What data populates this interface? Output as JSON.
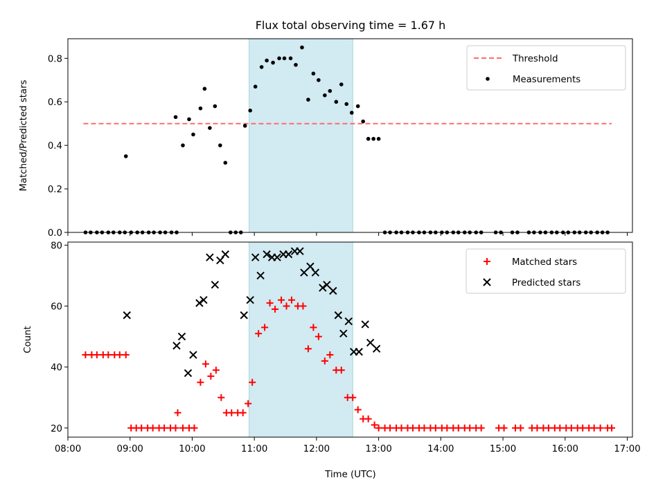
{
  "title": "Flux total observing time = 1.67 h",
  "x_label": "Time (UTC)",
  "chart_data": [
    {
      "type": "scatter",
      "ylabel": "Matched/Predicted stars",
      "xlim": [
        "08:00",
        "17:05"
      ],
      "ylim": [
        0,
        0.89
      ],
      "y_ticks": [
        "0.0",
        "0.2",
        "0.4",
        "0.6",
        "0.8"
      ],
      "y_tick_values": [
        0,
        0.2,
        0.4,
        0.6,
        0.8
      ],
      "shaded_interval": [
        "10:55",
        "12:35"
      ],
      "shade_color": "#add8e6",
      "threshold": {
        "name": "Threshold",
        "value": 0.5,
        "x_range": [
          "08:15",
          "16:45"
        ],
        "color": "#ff6b6b"
      },
      "legend": {
        "placement": "top-right",
        "entries": [
          "Threshold",
          "Measurements"
        ]
      },
      "series": [
        {
          "name": "Measurements",
          "color": "#000000",
          "marker": "dot",
          "points": [
            [
              "08:17",
              0
            ],
            [
              "08:22",
              0
            ],
            [
              "08:28",
              0
            ],
            [
              "08:33",
              0
            ],
            [
              "08:39",
              0
            ],
            [
              "08:44",
              0
            ],
            [
              "08:50",
              0
            ],
            [
              "08:55",
              0
            ],
            [
              "08:56",
              0.35
            ],
            [
              "09:01",
              0
            ],
            [
              "09:07",
              0
            ],
            [
              "09:12",
              0
            ],
            [
              "09:18",
              0
            ],
            [
              "09:23",
              0
            ],
            [
              "09:29",
              0
            ],
            [
              "09:34",
              0
            ],
            [
              "09:40",
              0
            ],
            [
              "09:45",
              0
            ],
            [
              "09:44",
              0.53
            ],
            [
              "09:51",
              0.4
            ],
            [
              "09:57",
              0.52
            ],
            [
              "10:01",
              0.45
            ],
            [
              "10:08",
              0.57
            ],
            [
              "10:12",
              0.66
            ],
            [
              "10:17",
              0.48
            ],
            [
              "10:22",
              0.58
            ],
            [
              "10:27",
              0.4
            ],
            [
              "10:32",
              0.32
            ],
            [
              "10:37",
              0
            ],
            [
              "10:42",
              0
            ],
            [
              "10:47",
              0
            ],
            [
              "10:51",
              0.49
            ],
            [
              "10:56",
              0.56
            ],
            [
              "11:01",
              0.67
            ],
            [
              "11:07",
              0.76
            ],
            [
              "11:12",
              0.79
            ],
            [
              "11:18",
              0.78
            ],
            [
              "11:24",
              0.8
            ],
            [
              "11:29",
              0.8
            ],
            [
              "11:35",
              0.8
            ],
            [
              "11:40",
              0.77
            ],
            [
              "11:46",
              0.85
            ],
            [
              "11:52",
              0.61
            ],
            [
              "11:57",
              0.73
            ],
            [
              "12:02",
              0.7
            ],
            [
              "12:08",
              0.63
            ],
            [
              "12:13",
              0.65
            ],
            [
              "12:19",
              0.6
            ],
            [
              "12:24",
              0.68
            ],
            [
              "12:29",
              0.59
            ],
            [
              "12:34",
              0.55
            ],
            [
              "12:40",
              0.58
            ],
            [
              "12:45",
              0.51
            ],
            [
              "12:50",
              0.43
            ],
            [
              "12:55",
              0.43
            ],
            [
              "13:00",
              0.43
            ],
            [
              "13:06",
              0
            ],
            [
              "13:11",
              0
            ],
            [
              "13:17",
              0
            ],
            [
              "13:22",
              0
            ],
            [
              "13:28",
              0
            ],
            [
              "13:33",
              0
            ],
            [
              "13:39",
              0
            ],
            [
              "13:44",
              0
            ],
            [
              "13:50",
              0
            ],
            [
              "13:55",
              0
            ],
            [
              "14:01",
              0
            ],
            [
              "14:06",
              0
            ],
            [
              "14:12",
              0
            ],
            [
              "14:17",
              0
            ],
            [
              "14:23",
              0
            ],
            [
              "14:28",
              0
            ],
            [
              "14:34",
              0
            ],
            [
              "14:39",
              0
            ],
            [
              "14:53",
              0
            ],
            [
              "14:58",
              0
            ],
            [
              "15:09",
              0
            ],
            [
              "15:14",
              0
            ],
            [
              "15:25",
              0
            ],
            [
              "15:30",
              0
            ],
            [
              "15:36",
              0
            ],
            [
              "15:41",
              0
            ],
            [
              "15:47",
              0
            ],
            [
              "15:52",
              0
            ],
            [
              "15:58",
              0
            ],
            [
              "16:03",
              0
            ],
            [
              "16:09",
              0
            ],
            [
              "16:14",
              0
            ],
            [
              "16:20",
              0
            ],
            [
              "16:25",
              0
            ],
            [
              "16:31",
              0
            ],
            [
              "16:36",
              0
            ],
            [
              "16:41",
              0
            ]
          ]
        }
      ]
    },
    {
      "type": "scatter",
      "ylabel": "Count",
      "xlim": [
        "08:00",
        "17:05"
      ],
      "ylim": [
        17,
        81
      ],
      "y_ticks": [
        "20",
        "40",
        "60",
        "80"
      ],
      "y_tick_values": [
        20,
        40,
        60,
        80
      ],
      "x_ticks": [
        "08:00",
        "09:00",
        "10:00",
        "11:00",
        "12:00",
        "13:00",
        "14:00",
        "15:00",
        "16:00",
        "17:00"
      ],
      "shaded_interval": [
        "10:55",
        "12:35"
      ],
      "shade_color": "#add8e6",
      "legend": {
        "placement": "top-right",
        "entries": [
          "Matched stars",
          "Predicted stars"
        ]
      },
      "series": [
        {
          "name": "Matched stars",
          "color": "#ff0000",
          "marker": "plus",
          "points": [
            [
              "08:17",
              44
            ],
            [
              "08:23",
              44
            ],
            [
              "08:28",
              44
            ],
            [
              "08:34",
              44
            ],
            [
              "08:39",
              44
            ],
            [
              "08:45",
              44
            ],
            [
              "08:50",
              44
            ],
            [
              "08:56",
              44
            ],
            [
              "09:01",
              20
            ],
            [
              "09:06",
              20
            ],
            [
              "09:11",
              20
            ],
            [
              "09:17",
              20
            ],
            [
              "09:22",
              20
            ],
            [
              "09:28",
              20
            ],
            [
              "09:33",
              20
            ],
            [
              "09:39",
              20
            ],
            [
              "09:44",
              20
            ],
            [
              "09:46",
              25
            ],
            [
              "09:51",
              20
            ],
            [
              "09:57",
              20
            ],
            [
              "10:02",
              20
            ],
            [
              "10:08",
              35
            ],
            [
              "10:13",
              41
            ],
            [
              "10:18",
              37
            ],
            [
              "10:23",
              39
            ],
            [
              "10:28",
              30
            ],
            [
              "10:33",
              25
            ],
            [
              "10:38",
              25
            ],
            [
              "10:44",
              25
            ],
            [
              "10:49",
              25
            ],
            [
              "10:54",
              28
            ],
            [
              "10:58",
              35
            ],
            [
              "11:04",
              51
            ],
            [
              "11:10",
              53
            ],
            [
              "11:15",
              61
            ],
            [
              "11:20",
              59
            ],
            [
              "11:26",
              62
            ],
            [
              "11:31",
              60
            ],
            [
              "11:36",
              62
            ],
            [
              "11:42",
              60
            ],
            [
              "11:47",
              60
            ],
            [
              "11:52",
              46
            ],
            [
              "11:57",
              53
            ],
            [
              "12:02",
              50
            ],
            [
              "12:08",
              42
            ],
            [
              "12:13",
              44
            ],
            [
              "12:19",
              39
            ],
            [
              "12:24",
              39
            ],
            [
              "12:30",
              30
            ],
            [
              "12:35",
              30
            ],
            [
              "12:40",
              26
            ],
            [
              "12:45",
              23
            ],
            [
              "12:50",
              23
            ],
            [
              "12:56",
              21
            ],
            [
              "13:00",
              20
            ],
            [
              "13:06",
              20
            ],
            [
              "13:11",
              20
            ],
            [
              "13:17",
              20
            ],
            [
              "13:22",
              20
            ],
            [
              "13:28",
              20
            ],
            [
              "13:33",
              20
            ],
            [
              "13:39",
              20
            ],
            [
              "13:44",
              20
            ],
            [
              "13:50",
              20
            ],
            [
              "13:55",
              20
            ],
            [
              "14:01",
              20
            ],
            [
              "14:06",
              20
            ],
            [
              "14:12",
              20
            ],
            [
              "14:17",
              20
            ],
            [
              "14:23",
              20
            ],
            [
              "14:28",
              20
            ],
            [
              "14:34",
              20
            ],
            [
              "14:39",
              20
            ],
            [
              "14:56",
              20
            ],
            [
              "15:01",
              20
            ],
            [
              "15:12",
              20
            ],
            [
              "15:17",
              20
            ],
            [
              "15:28",
              20
            ],
            [
              "15:33",
              20
            ],
            [
              "15:39",
              20
            ],
            [
              "15:44",
              20
            ],
            [
              "15:50",
              20
            ],
            [
              "15:55",
              20
            ],
            [
              "16:01",
              20
            ],
            [
              "16:06",
              20
            ],
            [
              "16:12",
              20
            ],
            [
              "16:17",
              20
            ],
            [
              "16:23",
              20
            ],
            [
              "16:28",
              20
            ],
            [
              "16:34",
              20
            ],
            [
              "16:41",
              20
            ],
            [
              "16:45",
              20
            ]
          ]
        },
        {
          "name": "Predicted stars",
          "color": "#000000",
          "marker": "x",
          "points": [
            [
              "08:57",
              57
            ],
            [
              "09:45",
              47
            ],
            [
              "09:50",
              50
            ],
            [
              "09:56",
              38
            ],
            [
              "10:01",
              44
            ],
            [
              "10:07",
              61
            ],
            [
              "10:11",
              62
            ],
            [
              "10:17",
              76
            ],
            [
              "10:22",
              67
            ],
            [
              "10:27",
              75
            ],
            [
              "10:32",
              77
            ],
            [
              "10:50",
              57
            ],
            [
              "10:56",
              62
            ],
            [
              "11:01",
              76
            ],
            [
              "11:06",
              70
            ],
            [
              "11:12",
              77
            ],
            [
              "11:17",
              76
            ],
            [
              "11:22",
              76
            ],
            [
              "11:28",
              77
            ],
            [
              "11:33",
              77
            ],
            [
              "11:39",
              78
            ],
            [
              "11:44",
              78
            ],
            [
              "11:48",
              71
            ],
            [
              "11:54",
              73
            ],
            [
              "11:59",
              71
            ],
            [
              "12:06",
              66
            ],
            [
              "12:10",
              67
            ],
            [
              "12:16",
              65
            ],
            [
              "12:21",
              57
            ],
            [
              "12:26",
              51
            ],
            [
              "12:31",
              55
            ],
            [
              "12:36",
              45
            ],
            [
              "12:41",
              45
            ],
            [
              "12:47",
              54
            ],
            [
              "12:52",
              48
            ],
            [
              "12:58",
              46
            ]
          ]
        }
      ]
    }
  ]
}
